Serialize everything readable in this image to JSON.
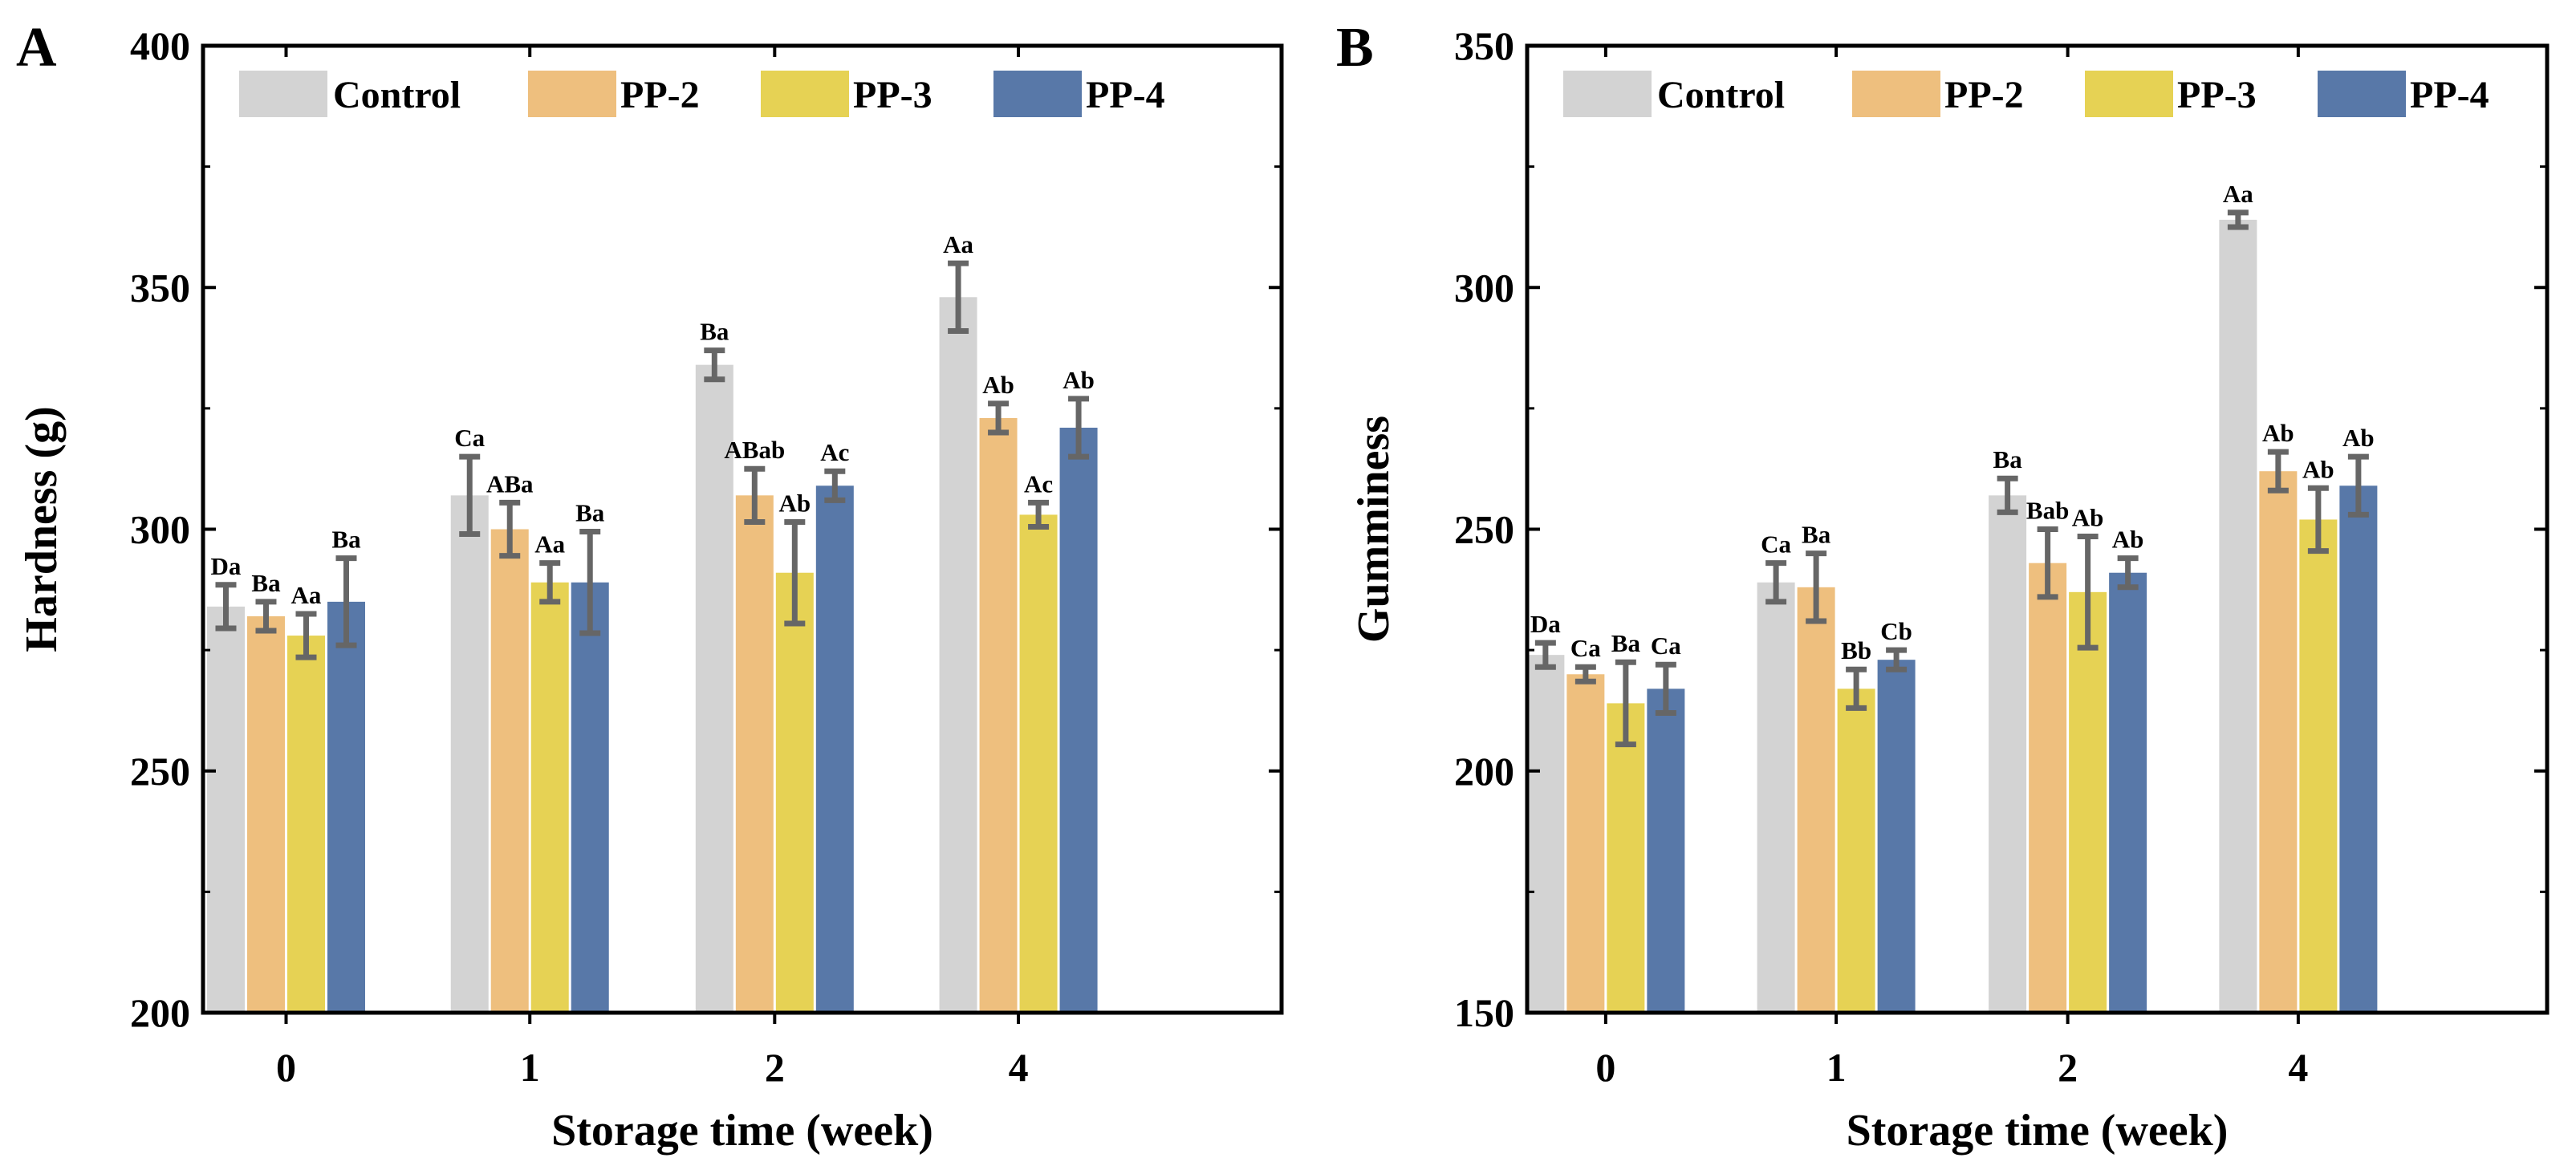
{
  "chart_data": [
    {
      "type": "bar",
      "panel_label": "A",
      "title": "",
      "xlabel": "Storage time (week)",
      "ylabel": "Hardness (g)",
      "ylim": [
        200,
        400
      ],
      "yticks": [
        "200",
        "250",
        "300",
        "350",
        "400"
      ],
      "categories": [
        "0",
        "1",
        "2",
        "4"
      ],
      "legend_position": "top",
      "series": [
        {
          "name": "Control",
          "color": "#D3D3D3",
          "values": [
            284,
            307,
            334,
            348
          ],
          "errors": [
            4.5,
            8,
            3,
            7
          ],
          "labels": [
            "Da",
            "Ca",
            "Ba",
            "Aa"
          ]
        },
        {
          "name": "PP-2",
          "color": "#EEBF7E",
          "values": [
            282,
            300,
            307,
            323
          ],
          "errors": [
            3,
            5.5,
            5.5,
            3
          ],
          "labels": [
            "Ba",
            "ABa",
            "ABab",
            "Ab"
          ]
        },
        {
          "name": "PP-3",
          "color": "#E6D254",
          "values": [
            278,
            289,
            291,
            303
          ],
          "errors": [
            4.5,
            4,
            10.5,
            2.5
          ],
          "labels": [
            "Aa",
            "Aa",
            "Ab",
            "Ac"
          ]
        },
        {
          "name": "PP-4",
          "color": "#5878A8",
          "values": [
            285,
            289,
            309,
            321
          ],
          "errors": [
            9,
            10.5,
            3,
            6
          ],
          "labels": [
            "Ba",
            "Ba",
            "Ac",
            "Ab"
          ]
        }
      ]
    },
    {
      "type": "bar",
      "panel_label": "B",
      "title": "",
      "xlabel": "Storage time (week)",
      "ylabel": "Gumminess",
      "ylim": [
        150,
        350
      ],
      "yticks": [
        "150",
        "200",
        "250",
        "300",
        "350"
      ],
      "categories": [
        "0",
        "1",
        "2",
        "4"
      ],
      "legend_position": "top",
      "series": [
        {
          "name": "Control",
          "color": "#D3D3D3",
          "values": [
            224,
            239,
            257,
            314
          ],
          "errors": [
            2.5,
            4,
            3.5,
            1.5
          ],
          "labels": [
            "Da",
            "Ca",
            "Ba",
            "Aa"
          ]
        },
        {
          "name": "PP-2",
          "color": "#EEBF7E",
          "values": [
            220,
            238,
            243,
            262
          ],
          "errors": [
            1.5,
            7,
            7,
            4
          ],
          "labels": [
            "Ca",
            "Ba",
            "Bab",
            "Ab"
          ]
        },
        {
          "name": "PP-3",
          "color": "#E6D254",
          "values": [
            214,
            217,
            237,
            252
          ],
          "errors": [
            8.5,
            4,
            11.5,
            6.5
          ],
          "labels": [
            "Ba",
            "Bb",
            "Ab",
            "Ab"
          ]
        },
        {
          "name": "PP-4",
          "color": "#5878A8",
          "values": [
            217,
            223,
            241,
            259
          ],
          "errors": [
            5,
            2,
            3,
            6
          ],
          "labels": [
            "Ca",
            "Cb",
            "Ab",
            "Ab"
          ]
        }
      ]
    }
  ]
}
